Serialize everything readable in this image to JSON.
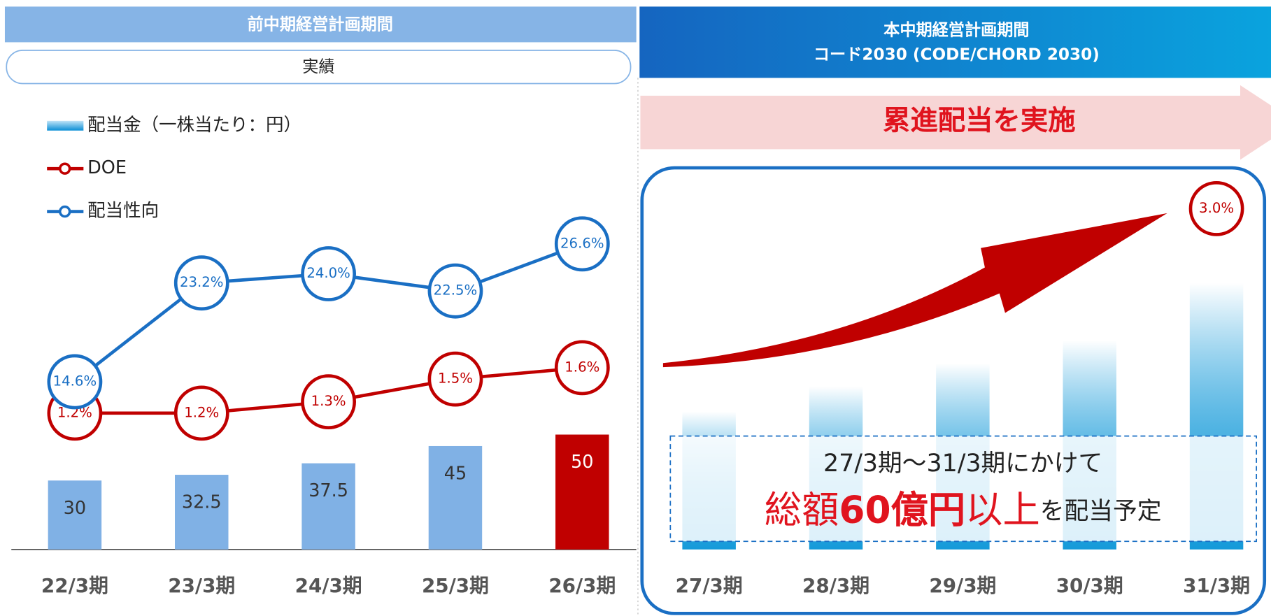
{
  "header_left": {
    "title": "前中期経営計画期間",
    "label": "実績"
  },
  "header_right": {
    "title": "本中期経営計画期間",
    "subtitle": "コード2030 (CODE/CHORD 2030)",
    "banner": "累進配当を実施"
  },
  "callout": {
    "line1": "27/3期～31/3期にかけて",
    "part1": "総額",
    "part2": "60億円",
    "part3": "以上",
    "part4": "を配当予定"
  },
  "chart_data": {
    "type": "bar",
    "categories": [
      "22/3期",
      "23/3期",
      "24/3期",
      "25/3期",
      "26/3期",
      "27/3期",
      "28/3期",
      "29/3期",
      "30/3期",
      "31/3期"
    ],
    "ylim": [
      0,
      225
    ],
    "y2lim": [
      0,
      4.55
    ],
    "y3lim": [
      0,
      45
    ],
    "legend": "top-left",
    "series": [
      {
        "name": "配当金（一株当たり：円）",
        "type": "bar",
        "colors": [
          "#80b1e5",
          "#80b1e5",
          "#80b1e5",
          "#80b1e5",
          "#c00000",
          "#159ad9",
          "#159ad9",
          "#159ad9",
          "#159ad9",
          "#159ad9"
        ],
        "fill_styles": [
          "solid",
          "solid",
          "solid",
          "solid",
          "solid",
          "gradient",
          "gradient",
          "gradient",
          "gradient",
          "gradient"
        ],
        "values": [
          30,
          32.5,
          37.5,
          45,
          50,
          60,
          71,
          81,
          91,
          116
        ],
        "value_labels": [
          "30",
          "32.5",
          "37.5",
          "45",
          "50",
          null,
          null,
          null,
          null,
          null
        ]
      },
      {
        "name": "DOE",
        "type": "line",
        "axis": "y2",
        "color": "#c00000",
        "values": [
          1.2,
          1.2,
          1.3,
          1.5,
          1.6,
          null,
          null,
          null,
          null,
          3.0
        ],
        "value_labels": [
          "1.2%",
          "1.2%",
          "1.3%",
          "1.5%",
          "1.6%",
          null,
          null,
          null,
          null,
          "3.0%"
        ]
      },
      {
        "name": "配当性向",
        "type": "line",
        "axis": "y3",
        "color": "#1a6fc4",
        "values": [
          14.6,
          23.2,
          24.0,
          22.5,
          26.6,
          null,
          null,
          null,
          null,
          null
        ],
        "value_labels": [
          "14.6%",
          "23.2%",
          "24.0%",
          "22.5%",
          "26.6%",
          null,
          null,
          null,
          null,
          null
        ]
      }
    ]
  }
}
